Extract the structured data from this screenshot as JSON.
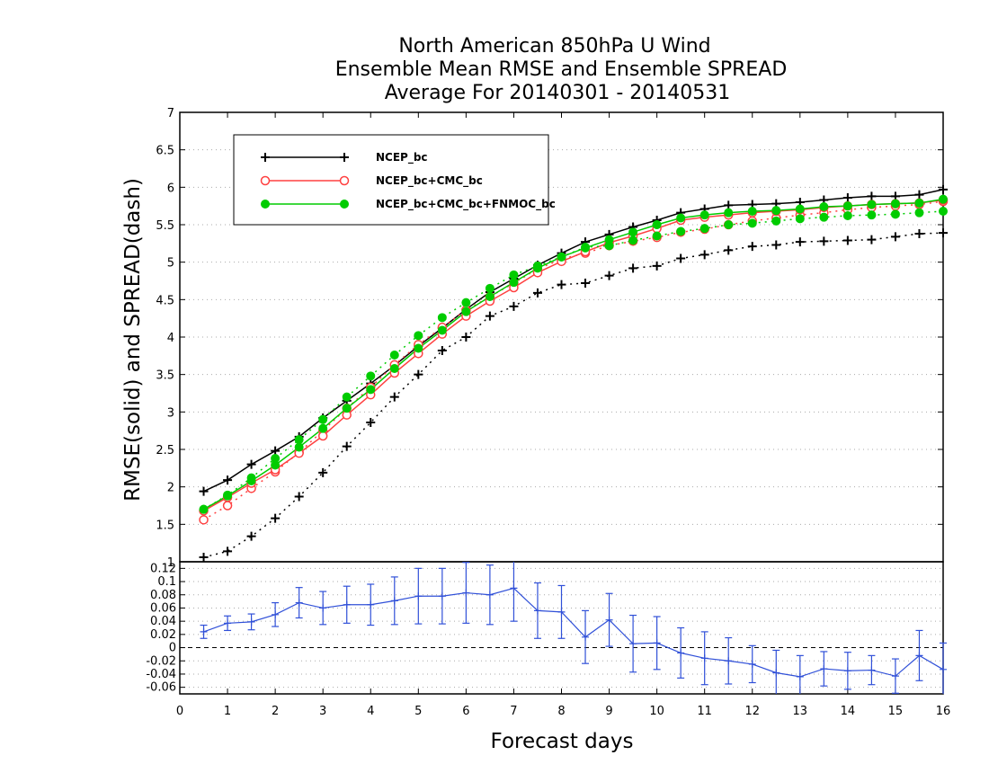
{
  "chart_data": {
    "type": "line",
    "title": [
      "North American 850hPa U Wind",
      "Ensemble Mean RMSE and Ensemble SPREAD",
      "Average For 20140301 - 20140531"
    ],
    "xlabel": "Forecast days",
    "ylabel": "RMSE(solid) and SPREAD(dash)",
    "xlim": [
      0,
      16
    ],
    "ylim": [
      1,
      7
    ],
    "x_ticks": [
      "0",
      "1",
      "2",
      "3",
      "4",
      "5",
      "6",
      "7",
      "8",
      "9",
      "10",
      "11",
      "12",
      "13",
      "14",
      "15",
      "16"
    ],
    "y_ticks": [
      "1",
      "1.5",
      "2",
      "2.5",
      "3",
      "3.5",
      "4",
      "4.5",
      "5",
      "5.5",
      "6",
      "6.5",
      "7"
    ],
    "grid": true,
    "legend_position": "top-left",
    "x": [
      0.5,
      1,
      1.5,
      2,
      2.5,
      3,
      3.5,
      4,
      4.5,
      5,
      5.5,
      6,
      6.5,
      7,
      7.5,
      8,
      8.5,
      9,
      9.5,
      10,
      10.5,
      11,
      11.5,
      12,
      12.5,
      13,
      13.5,
      14,
      14.5,
      15,
      15.5,
      16
    ],
    "series": [
      {
        "name": "NCEP_bc",
        "color": "#000000",
        "marker": "plus",
        "rmse": [
          1.94,
          2.09,
          2.3,
          2.48,
          2.67,
          2.92,
          3.15,
          3.38,
          3.62,
          3.88,
          4.12,
          4.37,
          4.6,
          4.78,
          4.96,
          5.12,
          5.27,
          5.37,
          5.47,
          5.56,
          5.66,
          5.71,
          5.76,
          5.77,
          5.78,
          5.8,
          5.83,
          5.86,
          5.88,
          5.88,
          5.9,
          5.97
        ],
        "spread": [
          1.06,
          1.14,
          1.34,
          1.58,
          1.87,
          2.19,
          2.54,
          2.86,
          3.2,
          3.5,
          3.82,
          4.0,
          4.28,
          4.41,
          4.59,
          4.7,
          4.72,
          4.82,
          4.92,
          4.95,
          5.05,
          5.1,
          5.16,
          5.21,
          5.23,
          5.27,
          5.28,
          5.29,
          5.3,
          5.34,
          5.38,
          5.39
        ]
      },
      {
        "name": "NCEP_bc+CMC_bc",
        "color": "#ff4040",
        "marker": "open-circle",
        "rmse": [
          1.68,
          1.86,
          2.05,
          2.23,
          2.45,
          2.68,
          2.96,
          3.23,
          3.52,
          3.78,
          4.04,
          4.28,
          4.48,
          4.66,
          4.86,
          5.01,
          5.14,
          5.26,
          5.35,
          5.45,
          5.56,
          5.6,
          5.63,
          5.66,
          5.68,
          5.7,
          5.73,
          5.75,
          5.77,
          5.78,
          5.79,
          5.83
        ],
        "spread": [
          1.56,
          1.75,
          1.98,
          2.2,
          2.46,
          2.75,
          3.05,
          3.33,
          3.63,
          3.9,
          4.13,
          4.36,
          4.54,
          4.72,
          4.91,
          5.04,
          5.12,
          5.22,
          5.28,
          5.33,
          5.4,
          5.44,
          5.5,
          5.55,
          5.59,
          5.63,
          5.66,
          5.7,
          5.73,
          5.75,
          5.77,
          5.81
        ]
      },
      {
        "name": "NCEP_bc+CMC_bc+FNMOC_bc",
        "color": "#00cc00",
        "marker": "filled-circle",
        "rmse": [
          1.7,
          1.88,
          2.08,
          2.29,
          2.53,
          2.78,
          3.05,
          3.3,
          3.58,
          3.85,
          4.09,
          4.34,
          4.54,
          4.73,
          4.92,
          5.07,
          5.19,
          5.3,
          5.4,
          5.5,
          5.59,
          5.63,
          5.66,
          5.68,
          5.69,
          5.71,
          5.74,
          5.75,
          5.77,
          5.78,
          5.79,
          5.84
        ],
        "spread": [
          1.7,
          1.89,
          2.12,
          2.38,
          2.63,
          2.9,
          3.2,
          3.48,
          3.76,
          4.02,
          4.26,
          4.46,
          4.65,
          4.83,
          4.95,
          5.07,
          5.2,
          5.22,
          5.29,
          5.35,
          5.41,
          5.45,
          5.5,
          5.52,
          5.55,
          5.58,
          5.6,
          5.62,
          5.63,
          5.64,
          5.66,
          5.68
        ]
      }
    ],
    "difference_panel": {
      "color": "#3050d8",
      "ylim": [
        -0.07,
        0.13
      ],
      "y_ticks": [
        "0.12",
        "0.1",
        "0.08",
        "0.06",
        "0.04",
        "0.02",
        "0",
        "-0.02",
        "-0.04",
        "-0.06"
      ],
      "reference_line": 0,
      "values": [
        0.024,
        0.037,
        0.039,
        0.05,
        0.068,
        0.06,
        0.065,
        0.065,
        0.071,
        0.078,
        0.078,
        0.083,
        0.08,
        0.09,
        0.056,
        0.054,
        0.016,
        0.042,
        0.006,
        0.007,
        -0.008,
        -0.016,
        -0.02,
        -0.025,
        -0.038,
        -0.044,
        -0.032,
        -0.035,
        -0.034,
        -0.043,
        -0.012,
        -0.033
      ],
      "error": [
        0.01,
        0.011,
        0.012,
        0.018,
        0.023,
        0.025,
        0.028,
        0.031,
        0.036,
        0.042,
        0.042,
        0.046,
        0.045,
        0.05,
        0.042,
        0.04,
        0.04,
        0.04,
        0.043,
        0.04,
        0.038,
        0.04,
        0.035,
        0.028,
        0.034,
        0.032,
        0.026,
        0.028,
        0.022,
        0.026,
        0.038,
        0.04
      ]
    }
  }
}
